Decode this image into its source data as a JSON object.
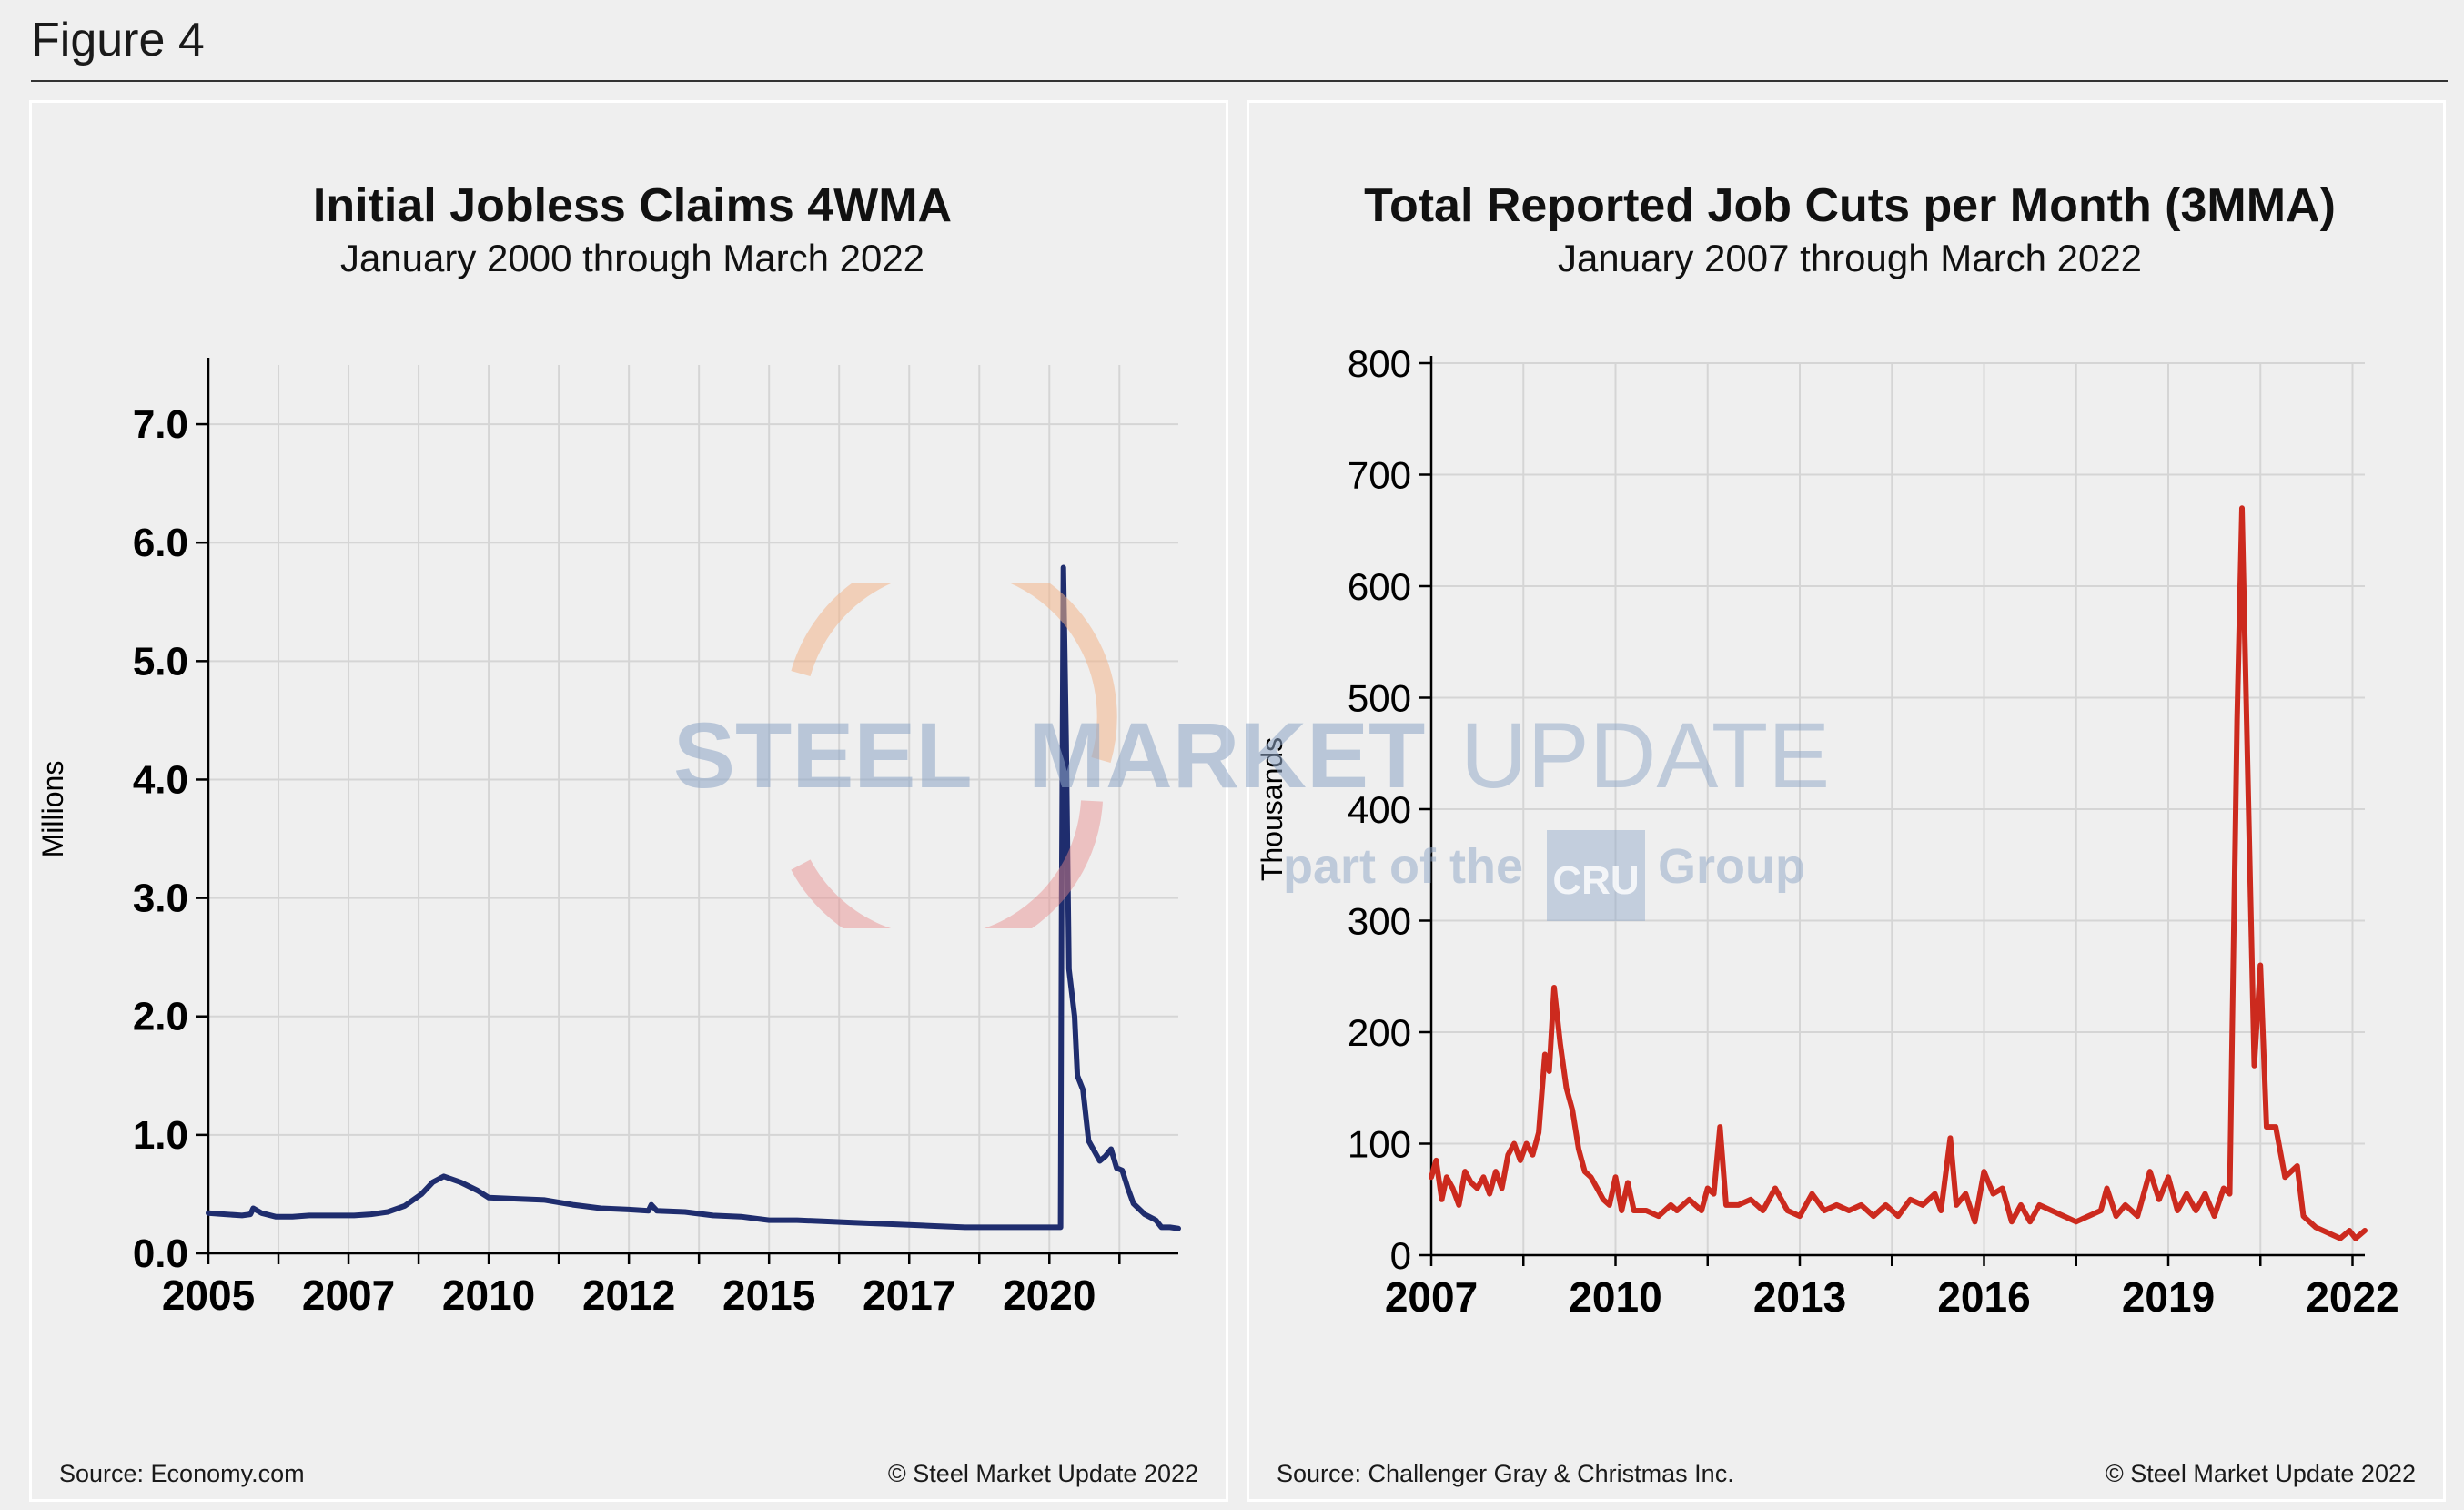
{
  "figure": {
    "label": "Figure 4"
  },
  "watermark": {
    "word1": "STEEL",
    "word2": "MARKET",
    "word3": "UPDATE",
    "tag_pre": "part of the",
    "tag_brand": "CRU",
    "tag_post": "Group",
    "color_orange": "#f3b48a",
    "color_red": "#e98a8a",
    "color_blue": "#8ea6c7"
  },
  "chart_data": [
    {
      "type": "line",
      "title": "Initial Jobless Claims 4WMA",
      "subtitle": "January 2000 through March 2022",
      "ylabel": "Millions",
      "xlabel": "",
      "ylim": [
        0,
        7.5
      ],
      "xlim": [
        2005.0,
        2022.3
      ],
      "yticks": [
        0.0,
        1.0,
        2.0,
        3.0,
        4.0,
        5.0,
        6.0,
        7.0
      ],
      "ytick_labels": [
        "0.0",
        "1.0",
        "2.0",
        "3.0",
        "4.0",
        "5.0",
        "6.0",
        "7.0"
      ],
      "xticks": [
        2005.0,
        2007.5,
        2010.0,
        2012.5,
        2015.0,
        2017.5,
        2020.0
      ],
      "xtick_labels": [
        "2005",
        "2007",
        "2010",
        "2012",
        "2015",
        "2017",
        "2020"
      ],
      "grid": true,
      "color": "#1f2d6e",
      "source": "Source: Economy.com",
      "copyright": "© Steel Market Update 2022",
      "series": [
        {
          "name": "Initial Jobless Claims 4WMA",
          "points": [
            [
              2005.0,
              0.34
            ],
            [
              2005.3,
              0.33
            ],
            [
              2005.6,
              0.32
            ],
            [
              2005.75,
              0.33
            ],
            [
              2005.8,
              0.38
            ],
            [
              2005.95,
              0.34
            ],
            [
              2006.2,
              0.31
            ],
            [
              2006.5,
              0.31
            ],
            [
              2006.8,
              0.32
            ],
            [
              2007.2,
              0.32
            ],
            [
              2007.6,
              0.32
            ],
            [
              2007.9,
              0.33
            ],
            [
              2008.2,
              0.35
            ],
            [
              2008.5,
              0.4
            ],
            [
              2008.8,
              0.5
            ],
            [
              2009.0,
              0.6
            ],
            [
              2009.2,
              0.65
            ],
            [
              2009.5,
              0.6
            ],
            [
              2009.8,
              0.53
            ],
            [
              2010.0,
              0.47
            ],
            [
              2010.5,
              0.46
            ],
            [
              2011.0,
              0.45
            ],
            [
              2011.5,
              0.41
            ],
            [
              2012.0,
              0.38
            ],
            [
              2012.5,
              0.37
            ],
            [
              2012.85,
              0.36
            ],
            [
              2012.9,
              0.41
            ],
            [
              2013.0,
              0.36
            ],
            [
              2013.5,
              0.35
            ],
            [
              2014.0,
              0.32
            ],
            [
              2014.5,
              0.31
            ],
            [
              2015.0,
              0.28
            ],
            [
              2015.5,
              0.28
            ],
            [
              2016.0,
              0.27
            ],
            [
              2016.5,
              0.26
            ],
            [
              2017.0,
              0.25
            ],
            [
              2017.5,
              0.24
            ],
            [
              2018.0,
              0.23
            ],
            [
              2018.5,
              0.22
            ],
            [
              2019.0,
              0.22
            ],
            [
              2019.5,
              0.22
            ],
            [
              2020.0,
              0.22
            ],
            [
              2020.2,
              0.22
            ],
            [
              2020.22,
              3.0
            ],
            [
              2020.25,
              5.79
            ],
            [
              2020.3,
              4.3
            ],
            [
              2020.35,
              2.4
            ],
            [
              2020.45,
              2.0
            ],
            [
              2020.5,
              1.5
            ],
            [
              2020.6,
              1.38
            ],
            [
              2020.7,
              0.95
            ],
            [
              2020.9,
              0.78
            ],
            [
              2021.0,
              0.82
            ],
            [
              2021.1,
              0.88
            ],
            [
              2021.2,
              0.72
            ],
            [
              2021.3,
              0.7
            ],
            [
              2021.4,
              0.55
            ],
            [
              2021.5,
              0.42
            ],
            [
              2021.7,
              0.33
            ],
            [
              2021.9,
              0.28
            ],
            [
              2022.0,
              0.22
            ],
            [
              2022.15,
              0.22
            ],
            [
              2022.3,
              0.21
            ]
          ]
        }
      ]
    },
    {
      "type": "line",
      "title": "Total Reported Job Cuts per Month (3MMA)",
      "subtitle": "January 2007 through March 2022",
      "ylabel": "Thousands",
      "xlabel": "",
      "ylim": [
        0,
        800
      ],
      "xlim": [
        2007.0,
        2022.2
      ],
      "yticks": [
        0,
        100,
        200,
        300,
        400,
        500,
        600,
        700,
        800
      ],
      "ytick_labels": [
        "0",
        "100",
        "200",
        "300",
        "400",
        "500",
        "600",
        "700",
        "800"
      ],
      "xticks": [
        2007,
        2010,
        2013,
        2016,
        2019,
        2022
      ],
      "xtick_labels": [
        "2007",
        "2010",
        "2013",
        "2016",
        "2019",
        "2022"
      ],
      "grid": true,
      "color": "#cc2a1e",
      "source": "Source: Challenger Gray & Christmas Inc.",
      "copyright": "© Steel Market Update 2022",
      "series": [
        {
          "name": "Total Reported Job Cuts (3MMA)",
          "points": [
            [
              2007.0,
              70
            ],
            [
              2007.08,
              85
            ],
            [
              2007.17,
              50
            ],
            [
              2007.25,
              70
            ],
            [
              2007.35,
              60
            ],
            [
              2007.45,
              45
            ],
            [
              2007.55,
              75
            ],
            [
              2007.65,
              65
            ],
            [
              2007.75,
              60
            ],
            [
              2007.85,
              70
            ],
            [
              2007.95,
              55
            ],
            [
              2008.05,
              75
            ],
            [
              2008.15,
              60
            ],
            [
              2008.25,
              90
            ],
            [
              2008.35,
              100
            ],
            [
              2008.45,
              85
            ],
            [
              2008.55,
              100
            ],
            [
              2008.65,
              90
            ],
            [
              2008.75,
              110
            ],
            [
              2008.85,
              180
            ],
            [
              2008.92,
              165
            ],
            [
              2009.0,
              240
            ],
            [
              2009.1,
              190
            ],
            [
              2009.2,
              150
            ],
            [
              2009.3,
              130
            ],
            [
              2009.4,
              95
            ],
            [
              2009.5,
              75
            ],
            [
              2009.6,
              70
            ],
            [
              2009.7,
              60
            ],
            [
              2009.8,
              50
            ],
            [
              2009.9,
              45
            ],
            [
              2010.0,
              70
            ],
            [
              2010.1,
              40
            ],
            [
              2010.2,
              65
            ],
            [
              2010.3,
              40
            ],
            [
              2010.5,
              40
            ],
            [
              2010.7,
              35
            ],
            [
              2010.9,
              45
            ],
            [
              2011.0,
              40
            ],
            [
              2011.2,
              50
            ],
            [
              2011.4,
              40
            ],
            [
              2011.5,
              60
            ],
            [
              2011.6,
              55
            ],
            [
              2011.7,
              115
            ],
            [
              2011.8,
              45
            ],
            [
              2012.0,
              45
            ],
            [
              2012.2,
              50
            ],
            [
              2012.4,
              40
            ],
            [
              2012.6,
              60
            ],
            [
              2012.8,
              40
            ],
            [
              2013.0,
              35
            ],
            [
              2013.2,
              55
            ],
            [
              2013.4,
              40
            ],
            [
              2013.6,
              45
            ],
            [
              2013.8,
              40
            ],
            [
              2014.0,
              45
            ],
            [
              2014.2,
              35
            ],
            [
              2014.4,
              45
            ],
            [
              2014.6,
              35
            ],
            [
              2014.8,
              50
            ],
            [
              2015.0,
              45
            ],
            [
              2015.2,
              55
            ],
            [
              2015.3,
              40
            ],
            [
              2015.45,
              105
            ],
            [
              2015.55,
              45
            ],
            [
              2015.7,
              55
            ],
            [
              2015.85,
              30
            ],
            [
              2016.0,
              75
            ],
            [
              2016.15,
              55
            ],
            [
              2016.3,
              60
            ],
            [
              2016.45,
              30
            ],
            [
              2016.6,
              45
            ],
            [
              2016.75,
              30
            ],
            [
              2016.9,
              45
            ],
            [
              2017.1,
              40
            ],
            [
              2017.3,
              35
            ],
            [
              2017.5,
              30
            ],
            [
              2017.7,
              35
            ],
            [
              2017.9,
              40
            ],
            [
              2018.0,
              60
            ],
            [
              2018.15,
              35
            ],
            [
              2018.3,
              45
            ],
            [
              2018.5,
              35
            ],
            [
              2018.7,
              75
            ],
            [
              2018.85,
              50
            ],
            [
              2019.0,
              70
            ],
            [
              2019.15,
              40
            ],
            [
              2019.3,
              55
            ],
            [
              2019.45,
              40
            ],
            [
              2019.6,
              55
            ],
            [
              2019.75,
              35
            ],
            [
              2019.9,
              60
            ],
            [
              2020.0,
              55
            ],
            [
              2020.12,
              480
            ],
            [
              2020.2,
              670
            ],
            [
              2020.3,
              420
            ],
            [
              2020.4,
              170
            ],
            [
              2020.5,
              260
            ],
            [
              2020.6,
              115
            ],
            [
              2020.75,
              115
            ],
            [
              2020.9,
              70
            ],
            [
              2021.0,
              75
            ],
            [
              2021.1,
              80
            ],
            [
              2021.2,
              35
            ],
            [
              2021.4,
              25
            ],
            [
              2021.6,
              20
            ],
            [
              2021.8,
              15
            ],
            [
              2021.95,
              22
            ],
            [
              2022.05,
              15
            ],
            [
              2022.2,
              22
            ]
          ]
        }
      ]
    }
  ]
}
